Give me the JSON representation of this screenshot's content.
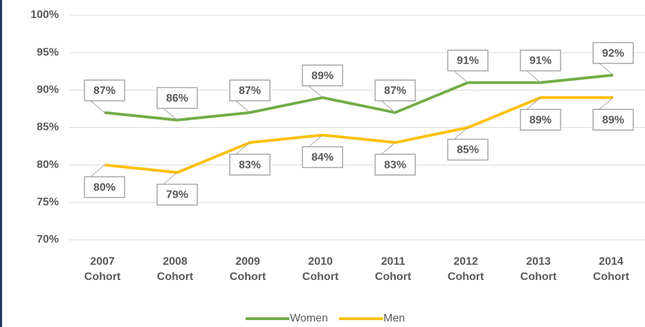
{
  "chart_data": {
    "type": "line",
    "categories": [
      "2007 Cohort",
      "2008 Cohort",
      "2009 Cohort",
      "2010 Cohort",
      "2011 Cohort",
      "2012 Cohort",
      "2013 Cohort",
      "2014 Cohort"
    ],
    "series": [
      {
        "name": "Women",
        "color": "#70ad47",
        "values": [
          87,
          86,
          87,
          89,
          87,
          91,
          91,
          92
        ],
        "value_labels": [
          "87%",
          "86%",
          "87%",
          "89%",
          "87%",
          "91%",
          "91%",
          "92%"
        ]
      },
      {
        "name": "Men",
        "color": "#ffc000",
        "values": [
          80,
          79,
          83,
          84,
          83,
          85,
          89,
          89
        ],
        "value_labels": [
          "80%",
          "79%",
          "83%",
          "84%",
          "83%",
          "85%",
          "89%",
          "89%"
        ]
      }
    ],
    "ylim": [
      70,
      100
    ],
    "yticks": [
      {
        "value": 70,
        "label": "70%"
      },
      {
        "value": 75,
        "label": "75%"
      },
      {
        "value": 80,
        "label": "80%"
      },
      {
        "value": 85,
        "label": "85%"
      },
      {
        "value": 90,
        "label": "90%"
      },
      {
        "value": 95,
        "label": "95%"
      },
      {
        "value": 100,
        "label": "100%"
      }
    ],
    "grid": true,
    "legend": "bottom"
  }
}
